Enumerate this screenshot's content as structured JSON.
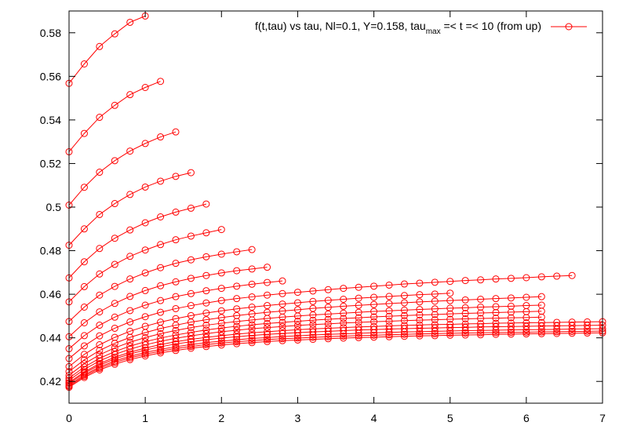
{
  "chart_data": {
    "type": "line",
    "title": "",
    "xlabel": "",
    "ylabel": "",
    "xlim": [
      0,
      7
    ],
    "ylim": [
      0.41,
      0.59
    ],
    "x_ticks": [
      "0",
      "1",
      "2",
      "3",
      "4",
      "5",
      "6",
      "7"
    ],
    "y_ticks": [
      "0.42",
      "0.44",
      "0.46",
      "0.48",
      "0.5",
      "0.52",
      "0.54",
      "0.56",
      "0.58"
    ],
    "grid": false,
    "legend_position": "top-right",
    "legend": {
      "prefix": "f(t,tau) vs tau, Nl=0.1, Y=0.158, tau",
      "subscript": "max",
      "suffix": " =< t =< 10 (from up)"
    },
    "series_color": "#ff0000",
    "marker": "open-circle",
    "x_step": 0.2,
    "series": [
      {
        "values": [
          0.5568,
          0.5657,
          0.5737,
          0.5795,
          0.5848,
          0.5877
        ]
      },
      {
        "values": [
          0.5254,
          0.5338,
          0.5412,
          0.5467,
          0.5516,
          0.5549,
          0.5577
        ]
      },
      {
        "values": [
          0.5009,
          0.5091,
          0.516,
          0.5213,
          0.5257,
          0.5292,
          0.5322,
          0.5345
        ]
      },
      {
        "values": [
          0.4825,
          0.49,
          0.4966,
          0.5016,
          0.5058,
          0.5092,
          0.5119,
          0.5141,
          0.5158
        ]
      },
      {
        "values": [
          0.4675,
          0.4749,
          0.481,
          0.4857,
          0.4895,
          0.4928,
          0.4955,
          0.4977,
          0.4995,
          0.5014
        ]
      },
      {
        "values": [
          0.4565,
          0.4635,
          0.4693,
          0.4737,
          0.4774,
          0.4803,
          0.4828,
          0.485,
          0.4867,
          0.4882,
          0.4897
        ]
      },
      {
        "values": [
          0.4475,
          0.4541,
          0.4596,
          0.4636,
          0.467,
          0.4698,
          0.4722,
          0.4742,
          0.4758,
          0.4772,
          0.4784,
          0.4795,
          0.4805
        ]
      },
      {
        "values": [
          0.4405,
          0.4469,
          0.4519,
          0.4558,
          0.459,
          0.4617,
          0.4639,
          0.4657,
          0.4673,
          0.4686,
          0.4698,
          0.4708,
          0.4716,
          0.4724
        ]
      },
      {
        "values": [
          0.435,
          0.441,
          0.4458,
          0.4495,
          0.4525,
          0.455,
          0.4571,
          0.4589,
          0.4603,
          0.4616,
          0.4627,
          0.4637,
          0.4646,
          0.4654,
          0.4661
        ]
      },
      {
        "values": [
          0.4305,
          0.4363,
          0.4409,
          0.4444,
          0.4473,
          0.4497,
          0.4517,
          0.4534,
          0.4548,
          0.456,
          0.4571,
          0.458,
          0.4588,
          0.4596,
          0.4603,
          0.4609,
          0.4615,
          0.4621,
          0.4627,
          0.4632,
          0.4637,
          0.4642,
          0.4647,
          0.4651,
          0.4655,
          0.4659,
          0.4663,
          0.4666,
          0.467,
          0.4673,
          0.4676,
          0.468,
          0.4683,
          0.4686
        ]
      },
      {
        "values": [
          0.4268,
          0.4324,
          0.4368,
          0.4402,
          0.443,
          0.4453,
          0.4472,
          0.4488,
          0.4502,
          0.4514,
          0.4524,
          0.4533,
          0.4541,
          0.4548,
          0.4555,
          0.4561,
          0.4567,
          0.4572,
          0.4577,
          0.4582,
          0.4586,
          0.459,
          0.4594,
          0.4598,
          0.4601,
          0.4605
        ]
      },
      {
        "values": [
          0.4245,
          0.4299,
          0.4342,
          0.4375,
          0.4402,
          0.4424,
          0.4443,
          0.4458,
          0.4472,
          0.4483,
          0.4493,
          0.4502,
          0.451,
          0.4517,
          0.4523,
          0.4529,
          0.4535,
          0.454,
          0.4545,
          0.4549,
          0.4553,
          0.4557,
          0.4561,
          0.4565,
          0.4568,
          0.4571,
          0.4574,
          0.4577,
          0.458,
          0.4583,
          0.4586,
          0.4589
        ]
      },
      {
        "values": [
          0.4228,
          0.4281,
          0.4322,
          0.4354,
          0.438,
          0.4401,
          0.4419,
          0.4434,
          0.4447,
          0.4458,
          0.4467,
          0.4475,
          0.4482,
          0.4489,
          0.4495,
          0.45,
          0.4505,
          0.4509,
          0.4513,
          0.4517,
          0.4521,
          0.4524,
          0.4527,
          0.453,
          0.4533,
          0.4536,
          0.4538,
          0.4541,
          0.4543,
          0.4545,
          0.4548,
          0.455
        ]
      },
      {
        "values": [
          0.4215,
          0.4266,
          0.4306,
          0.4337,
          0.4362,
          0.4382,
          0.4399,
          0.4413,
          0.4425,
          0.4436,
          0.4445,
          0.4453,
          0.446,
          0.4466,
          0.4471,
          0.4476,
          0.4481,
          0.4485,
          0.4489,
          0.4492,
          0.4496,
          0.4499,
          0.4502,
          0.4505,
          0.4507,
          0.451,
          0.4512,
          0.4514,
          0.4516,
          0.4518,
          0.452,
          0.4522
        ]
      },
      {
        "values": [
          0.4205,
          0.4255,
          0.4294,
          0.4324,
          0.4348,
          0.4368,
          0.4384,
          0.4398,
          0.4409,
          0.4419,
          0.4428,
          0.4435,
          0.4442,
          0.4447,
          0.4452,
          0.4457,
          0.4461,
          0.4464,
          0.4468,
          0.4471,
          0.4474,
          0.4476,
          0.4479,
          0.4481,
          0.4483,
          0.4485,
          0.4487,
          0.4489,
          0.449,
          0.4492,
          0.4493,
          0.4495
        ]
      },
      {
        "values": [
          0.4195,
          0.4244,
          0.4282,
          0.4311,
          0.4334,
          0.4353,
          0.4369,
          0.4382,
          0.4393,
          0.4402,
          0.441,
          0.4417,
          0.4423,
          0.4428,
          0.4433,
          0.4437,
          0.4441,
          0.4444,
          0.4447,
          0.445,
          0.4452,
          0.4455,
          0.4457,
          0.4459,
          0.4461,
          0.4462,
          0.4464,
          0.4465,
          0.4467,
          0.4468,
          0.4469,
          0.447,
          0.4471,
          0.4472,
          0.4473,
          0.4474
        ]
      },
      {
        "values": [
          0.419,
          0.4238,
          0.4275,
          0.4303,
          0.4326,
          0.4344,
          0.4359,
          0.4372,
          0.4382,
          0.4391,
          0.4399,
          0.4405,
          0.4411,
          0.4416,
          0.442,
          0.4424,
          0.4427,
          0.443,
          0.4433,
          0.4436,
          0.4438,
          0.444,
          0.4442,
          0.4444,
          0.4445,
          0.4447,
          0.4448,
          0.445,
          0.4451,
          0.4452,
          0.4453,
          0.4454,
          0.4455,
          0.4456,
          0.4457,
          0.4458
        ]
      },
      {
        "values": [
          0.4183,
          0.423,
          0.4266,
          0.4294,
          0.4315,
          0.4333,
          0.4347,
          0.4359,
          0.4369,
          0.4378,
          0.4385,
          0.4391,
          0.4397,
          0.4401,
          0.4406,
          0.4409,
          0.4413,
          0.4416,
          0.4418,
          0.4421,
          0.4423,
          0.4425,
          0.4427,
          0.4428,
          0.443,
          0.4431,
          0.4433,
          0.4434,
          0.4435,
          0.4436,
          0.4437,
          0.4438,
          0.4439,
          0.444,
          0.4441,
          0.4442
        ]
      },
      {
        "values": [
          0.4178,
          0.4224,
          0.426,
          0.4287,
          0.4308,
          0.4325,
          0.4339,
          0.4351,
          0.436,
          0.4369,
          0.4376,
          0.4382,
          0.4387,
          0.4392,
          0.4396,
          0.4399,
          0.4402,
          0.4405,
          0.4408,
          0.441,
          0.4412,
          0.4414,
          0.4416,
          0.4418,
          0.4419,
          0.4421,
          0.4422,
          0.4423,
          0.4424,
          0.4425,
          0.4426,
          0.4427,
          0.4428,
          0.4429,
          0.443,
          0.4431
        ]
      },
      {
        "values": [
          0.4173,
          0.4218,
          0.4253,
          0.4279,
          0.43,
          0.4317,
          0.4331,
          0.4342,
          0.4352,
          0.436,
          0.4367,
          0.4373,
          0.4378,
          0.4383,
          0.4387,
          0.439,
          0.4393,
          0.4396,
          0.4399,
          0.4401,
          0.4403,
          0.4405,
          0.4407,
          0.4409,
          0.441,
          0.4412,
          0.4413,
          0.4414,
          0.4416,
          0.4417,
          0.4418,
          0.4419,
          0.442,
          0.4421,
          0.4422,
          0.4423
        ]
      }
    ]
  }
}
